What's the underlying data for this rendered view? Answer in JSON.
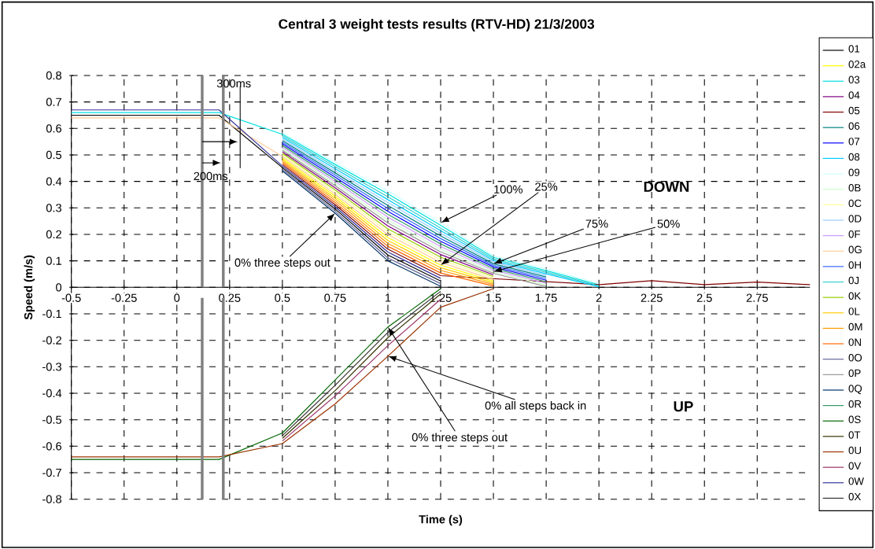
{
  "chart_data": {
    "type": "line",
    "title": "Central 3 weight tests results (RTV-HD) 21/3/2003",
    "xlabel": "Time (s)",
    "ylabel": "Speed (m/s)",
    "x": [
      -0.5,
      0,
      0.2,
      0.5,
      0.75,
      1.0,
      1.25,
      1.5,
      1.75,
      2.0,
      2.25,
      2.5,
      2.75,
      3.0
    ],
    "series": [
      {
        "name": "01",
        "color": "#000000",
        "values": [
          0.65,
          0.65,
          0.65,
          0.452,
          0.296,
          0.122,
          0.024,
          null,
          null,
          null,
          null,
          null,
          null,
          null
        ]
      },
      {
        "name": "02a",
        "color": "#ffff00",
        "values": [
          null,
          null,
          null,
          0.488,
          0.344,
          0.188,
          0.084,
          0.023,
          null,
          null,
          null,
          null,
          null,
          null
        ]
      },
      {
        "name": "03",
        "color": "#00e0e0",
        "values": [
          0.66,
          0.66,
          0.66,
          0.578,
          0.464,
          0.353,
          0.234,
          0.113,
          0.063,
          0.01,
          null,
          null,
          null,
          null
        ]
      },
      {
        "name": "04",
        "color": "#800080",
        "values": [
          null,
          null,
          null,
          0.512,
          0.376,
          0.232,
          0.124,
          0.047,
          null,
          null,
          null,
          null,
          null,
          null
        ]
      },
      {
        "name": "05",
        "color": "#800000",
        "values": [
          null,
          null,
          null,
          0.464,
          0.312,
          0.144,
          0.044,
          null,
          null,
          0.01,
          0.025,
          0.01,
          0.02,
          0.01
        ]
      },
      {
        "name": "06",
        "color": "#008080",
        "values": [
          null,
          null,
          null,
          0.554,
          0.432,
          0.309,
          0.194,
          0.089,
          0.039,
          null,
          null,
          null,
          null,
          null
        ]
      },
      {
        "name": "07",
        "color": "#0000ff",
        "values": [
          null,
          null,
          null,
          0.542,
          0.416,
          0.287,
          0.174,
          0.077,
          0.027,
          null,
          null,
          null,
          null,
          null
        ]
      },
      {
        "name": "08",
        "color": "#00ccff",
        "values": [
          null,
          null,
          null,
          0.566,
          0.448,
          0.331,
          0.214,
          0.101,
          0.051,
          0.002,
          null,
          null,
          null,
          null
        ]
      },
      {
        "name": "09",
        "color": "#ccffff",
        "values": [
          null,
          null,
          null,
          0.584,
          0.472,
          0.364,
          0.244,
          0.119,
          0.069,
          0.015,
          null,
          null,
          null,
          null
        ]
      },
      {
        "name": "0B",
        "color": "#ccffcc",
        "values": [
          null,
          null,
          null,
          0.524,
          0.392,
          0.254,
          0.144,
          0.059,
          0.009,
          null,
          null,
          null,
          null,
          null
        ]
      },
      {
        "name": "0C",
        "color": "#ffff99",
        "values": [
          null,
          null,
          null,
          0.5,
          0.36,
          0.21,
          0.104,
          0.035,
          null,
          null,
          null,
          null,
          null,
          null
        ]
      },
      {
        "name": "0D",
        "color": "#99ccff",
        "values": [
          null,
          null,
          null,
          0.56,
          0.44,
          0.32,
          0.204,
          0.095,
          0.045,
          null,
          null,
          null,
          null,
          null
        ]
      },
      {
        "name": "0F",
        "color": "#cc99ff",
        "values": [
          null,
          null,
          null,
          0.53,
          0.4,
          0.265,
          0.154,
          0.065,
          0.015,
          null,
          null,
          null,
          null,
          null
        ]
      },
      {
        "name": "0G",
        "color": "#ffcc99",
        "values": [
          0.64,
          0.64,
          0.64,
          0.494,
          0.352,
          0.199,
          0.094,
          0.029,
          null,
          null,
          null,
          null,
          null,
          null
        ]
      },
      {
        "name": "0H",
        "color": "#3366ff",
        "values": [
          null,
          null,
          null,
          0.548,
          0.424,
          0.298,
          0.184,
          0.083,
          0.033,
          null,
          null,
          null,
          null,
          null
        ]
      },
      {
        "name": "0J",
        "color": "#33cccc",
        "values": [
          null,
          null,
          null,
          0.572,
          0.456,
          0.342,
          0.224,
          0.107,
          0.057,
          0.006,
          null,
          null,
          null,
          null
        ]
      },
      {
        "name": "0K",
        "color": "#99cc00",
        "values": [
          null,
          null,
          null,
          0.506,
          0.368,
          0.221,
          0.114,
          0.041,
          null,
          null,
          null,
          null,
          null,
          null
        ]
      },
      {
        "name": "0L",
        "color": "#ffcc00",
        "values": [
          null,
          null,
          null,
          0.482,
          0.336,
          0.177,
          0.074,
          0.017,
          null,
          null,
          null,
          null,
          null,
          null
        ]
      },
      {
        "name": "0M",
        "color": "#ff9900",
        "values": [
          null,
          null,
          null,
          0.476,
          0.328,
          0.166,
          0.064,
          0.011,
          null,
          null,
          null,
          null,
          null,
          null
        ]
      },
      {
        "name": "0N",
        "color": "#ff6600",
        "values": [
          null,
          null,
          null,
          0.47,
          0.32,
          0.155,
          0.054,
          0.005,
          null,
          null,
          null,
          null,
          null,
          null
        ]
      },
      {
        "name": "0O",
        "color": "#666699",
        "values": [
          null,
          null,
          null,
          0.446,
          0.288,
          0.111,
          0.014,
          null,
          null,
          null,
          null,
          null,
          null,
          null
        ]
      },
      {
        "name": "0P",
        "color": "#969696",
        "values": [
          null,
          null,
          null,
          0.518,
          0.384,
          0.243,
          0.134,
          0.053,
          0.003,
          null,
          null,
          null,
          null,
          null
        ]
      },
      {
        "name": "0Q",
        "color": "#003366",
        "values": [
          null,
          null,
          null,
          0.44,
          0.28,
          0.1,
          0.004,
          null,
          null,
          null,
          null,
          null,
          null,
          null
        ]
      },
      {
        "name": "0R",
        "color": "#339966",
        "values": [
          null,
          null,
          null,
          0.536,
          0.408,
          0.276,
          0.164,
          0.071,
          0.021,
          null,
          null,
          null,
          null,
          null
        ]
      },
      {
        "name": "0S",
        "color": "#006600",
        "values": [
          -0.65,
          -0.65,
          -0.65,
          -0.55,
          -0.35,
          -0.15,
          -0.005,
          null,
          null,
          null,
          null,
          null,
          null,
          null
        ]
      },
      {
        "name": "0T",
        "color": "#333300",
        "values": [
          null,
          null,
          null,
          -0.57,
          -0.39,
          -0.19,
          -0.025,
          null,
          null,
          null,
          null,
          null,
          null,
          null
        ]
      },
      {
        "name": "0U",
        "color": "#993300",
        "values": [
          -0.64,
          -0.64,
          -0.64,
          -0.59,
          -0.44,
          -0.26,
          -0.075,
          -0.005,
          null,
          null,
          null,
          null,
          null,
          null
        ]
      },
      {
        "name": "0V",
        "color": "#993366",
        "values": [
          null,
          null,
          null,
          -0.58,
          -0.41,
          -0.22,
          -0.045,
          null,
          null,
          null,
          null,
          null,
          null,
          null
        ]
      },
      {
        "name": "0W",
        "color": "#333399",
        "values": [
          0.67,
          0.67,
          0.67,
          0.458,
          0.304,
          0.133,
          0.034,
          null,
          null,
          null,
          null,
          null,
          null,
          null
        ]
      },
      {
        "name": "0X",
        "color": "#333333",
        "values": [
          null,
          null,
          null,
          -0.56,
          -0.37,
          -0.17,
          -0.015,
          null,
          null,
          null,
          null,
          null,
          null,
          null
        ]
      }
    ],
    "xlim": [
      -0.5,
      3
    ],
    "ylim": [
      -0.8,
      0.8
    ],
    "xticks": [
      -0.5,
      -0.25,
      0,
      0.25,
      0.5,
      0.75,
      1,
      1.25,
      1.5,
      1.75,
      2,
      2.25,
      2.5,
      2.75
    ],
    "yticks": [
      -0.8,
      -0.7,
      -0.6,
      -0.5,
      -0.4,
      -0.3,
      -0.2,
      -0.1,
      0,
      0.1,
      0.2,
      0.3,
      0.4,
      0.5,
      0.6,
      0.7,
      0.8
    ],
    "grid": true,
    "legend": "right",
    "marker": "none",
    "line_style": "solid",
    "ref_lines": [
      {
        "axis": "x",
        "value": 0.12,
        "color": "#808080"
      },
      {
        "axis": "x",
        "value": 0.22,
        "color": "#808080"
      }
    ],
    "annotations": [
      "300ms",
      "200ms",
      {
        "text": "100%",
        "x": 1.25,
        "y": 0.244
      },
      {
        "text": "25%",
        "x": 1.25,
        "y": 0.084
      },
      {
        "text": "75%",
        "x": 1.5,
        "y": 0.089
      },
      {
        "text": "50%",
        "x": 1.5,
        "y": 0.059
      },
      "DOWN",
      {
        "text": "0% three steps out",
        "x": 0.75,
        "y": 0.28
      },
      {
        "text": "0% three steps out",
        "x": 1.0,
        "y": -0.15
      },
      {
        "text": "0% all steps back in",
        "x": 1.0,
        "y": -0.26
      },
      "UP"
    ]
  }
}
